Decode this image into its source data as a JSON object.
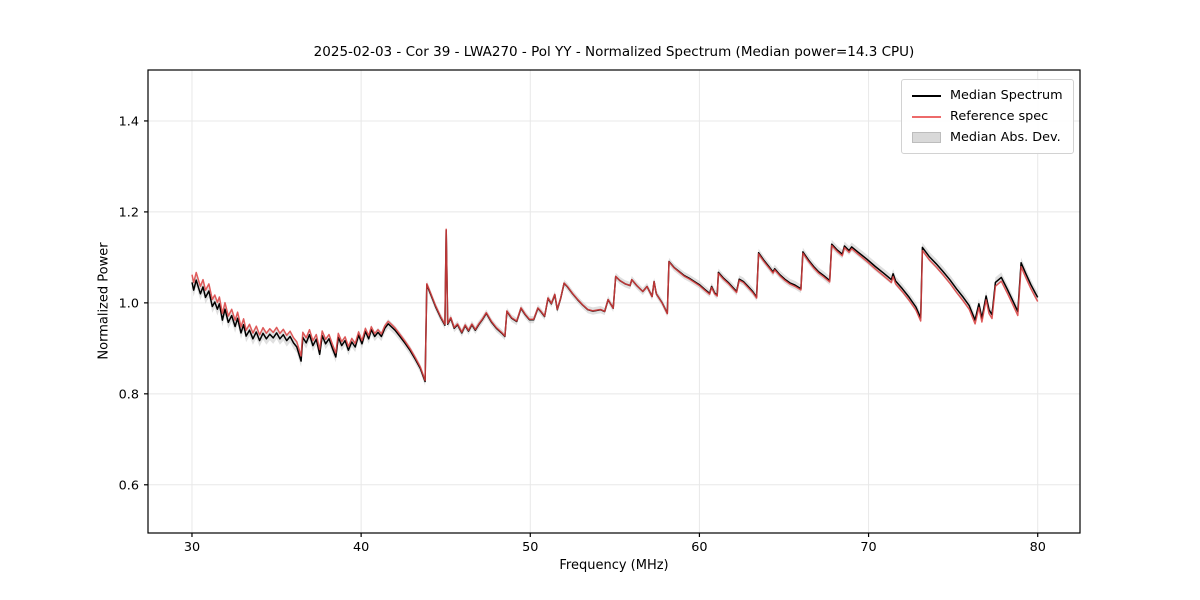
{
  "figure": {
    "title": "2025-02-03 - Cor 39 - LWA270 - Pol YY - Normalized Spectrum (Median power=14.3 CPU)",
    "xlabel": "Frequency (MHz)",
    "ylabel": "Normalized Power",
    "background": "#ffffff"
  },
  "legend": {
    "items": [
      {
        "label": "Median Spectrum",
        "type": "line",
        "color": "#000000"
      },
      {
        "label": "Reference spec",
        "type": "line",
        "color": "#ed6a6a"
      },
      {
        "label": "Median Abs. Dev.",
        "type": "patch",
        "color": "#d9d9d9",
        "edge": "#bdbdbd"
      }
    ]
  },
  "chart_data": {
    "type": "line",
    "title": "2025-02-03 - Cor 39 - LWA270 - Pol YY - Normalized Spectrum (Median power=14.3 CPU)",
    "xlabel": "Frequency (MHz)",
    "ylabel": "Normalized Power",
    "xlim": [
      27.4,
      82.5
    ],
    "ylim": [
      0.494,
      1.512
    ],
    "xticks": [
      30,
      40,
      50,
      60,
      70,
      80
    ],
    "xtick_labels": [
      "30",
      "40",
      "50",
      "60",
      "70",
      "80"
    ],
    "yticks": [
      0.6,
      0.8,
      1.0,
      1.2,
      1.4
    ],
    "ytick_labels": [
      "0.6",
      "0.8",
      "1.0",
      "1.2",
      "1.4"
    ],
    "grid": true,
    "grid_color": "#e8e8e8",
    "spine_color": "#000000",
    "legend_position": "upper right",
    "series": [
      {
        "name": "Median Spectrum",
        "role": "median",
        "color": "#000000",
        "width": 1.5,
        "opacity": 1.0
      },
      {
        "name": "Reference spec",
        "role": "reference",
        "color": "#dc4040",
        "width": 1.5,
        "opacity": 0.85
      },
      {
        "name": "Median Abs. Dev.",
        "role": "band",
        "color": "#bbbbbb",
        "opacity": 0.45
      }
    ],
    "median_points": [
      [
        30.0,
        1.045
      ],
      [
        30.1,
        1.028
      ],
      [
        30.25,
        1.05
      ],
      [
        30.4,
        1.032
      ],
      [
        30.5,
        1.02
      ],
      [
        30.65,
        1.035
      ],
      [
        30.8,
        1.012
      ],
      [
        31.0,
        1.026
      ],
      [
        31.2,
        0.992
      ],
      [
        31.35,
        1.002
      ],
      [
        31.5,
        0.986
      ],
      [
        31.62,
        0.998
      ],
      [
        31.8,
        0.962
      ],
      [
        31.95,
        0.986
      ],
      [
        32.15,
        0.957
      ],
      [
        32.35,
        0.972
      ],
      [
        32.55,
        0.948
      ],
      [
        32.7,
        0.966
      ],
      [
        32.9,
        0.934
      ],
      [
        33.05,
        0.952
      ],
      [
        33.2,
        0.927
      ],
      [
        33.4,
        0.94
      ],
      [
        33.6,
        0.921
      ],
      [
        33.8,
        0.936
      ],
      [
        34.0,
        0.917
      ],
      [
        34.2,
        0.933
      ],
      [
        34.4,
        0.921
      ],
      [
        34.6,
        0.931
      ],
      [
        34.8,
        0.923
      ],
      [
        35.0,
        0.934
      ],
      [
        35.2,
        0.921
      ],
      [
        35.4,
        0.93
      ],
      [
        35.6,
        0.917
      ],
      [
        35.8,
        0.926
      ],
      [
        36.0,
        0.912
      ],
      [
        36.2,
        0.903
      ],
      [
        36.45,
        0.872
      ],
      [
        36.55,
        0.924
      ],
      [
        36.75,
        0.912
      ],
      [
        36.95,
        0.93
      ],
      [
        37.15,
        0.906
      ],
      [
        37.35,
        0.92
      ],
      [
        37.55,
        0.887
      ],
      [
        37.7,
        0.928
      ],
      [
        37.9,
        0.91
      ],
      [
        38.1,
        0.921
      ],
      [
        38.3,
        0.9
      ],
      [
        38.5,
        0.881
      ],
      [
        38.65,
        0.924
      ],
      [
        38.85,
        0.906
      ],
      [
        39.05,
        0.917
      ],
      [
        39.25,
        0.896
      ],
      [
        39.45,
        0.914
      ],
      [
        39.65,
        0.903
      ],
      [
        39.85,
        0.929
      ],
      [
        40.05,
        0.91
      ],
      [
        40.25,
        0.937
      ],
      [
        40.45,
        0.921
      ],
      [
        40.6,
        0.941
      ],
      [
        40.8,
        0.926
      ],
      [
        41.0,
        0.935
      ],
      [
        41.2,
        0.926
      ],
      [
        41.4,
        0.944
      ],
      [
        41.6,
        0.954
      ],
      [
        41.8,
        0.947
      ],
      [
        42.0,
        0.94
      ],
      [
        42.3,
        0.926
      ],
      [
        42.6,
        0.911
      ],
      [
        42.9,
        0.895
      ],
      [
        43.2,
        0.876
      ],
      [
        43.5,
        0.856
      ],
      [
        43.78,
        0.827
      ],
      [
        43.88,
        1.04
      ],
      [
        44.1,
        1.02
      ],
      [
        44.4,
        0.992
      ],
      [
        44.7,
        0.968
      ],
      [
        44.95,
        0.951
      ],
      [
        45.03,
        1.16
      ],
      [
        45.12,
        0.953
      ],
      [
        45.3,
        0.966
      ],
      [
        45.5,
        0.944
      ],
      [
        45.7,
        0.952
      ],
      [
        45.95,
        0.934
      ],
      [
        46.15,
        0.95
      ],
      [
        46.35,
        0.938
      ],
      [
        46.55,
        0.952
      ],
      [
        46.75,
        0.94
      ],
      [
        46.95,
        0.952
      ],
      [
        47.15,
        0.962
      ],
      [
        47.4,
        0.977
      ],
      [
        47.7,
        0.958
      ],
      [
        48.0,
        0.944
      ],
      [
        48.3,
        0.934
      ],
      [
        48.5,
        0.926
      ],
      [
        48.62,
        0.981
      ],
      [
        48.9,
        0.966
      ],
      [
        49.2,
        0.959
      ],
      [
        49.45,
        0.988
      ],
      [
        49.7,
        0.974
      ],
      [
        49.95,
        0.963
      ],
      [
        50.2,
        0.963
      ],
      [
        50.45,
        0.988
      ],
      [
        50.6,
        0.982
      ],
      [
        50.85,
        0.97
      ],
      [
        51.05,
        1.01
      ],
      [
        51.25,
        0.998
      ],
      [
        51.45,
        1.018
      ],
      [
        51.6,
        0.985
      ],
      [
        51.8,
        1.01
      ],
      [
        52.0,
        1.043
      ],
      [
        52.2,
        1.035
      ],
      [
        52.5,
        1.02
      ],
      [
        52.8,
        1.007
      ],
      [
        53.1,
        0.995
      ],
      [
        53.4,
        0.985
      ],
      [
        53.7,
        0.982
      ],
      [
        54.15,
        0.985
      ],
      [
        54.4,
        0.981
      ],
      [
        54.6,
        1.007
      ],
      [
        54.9,
        0.988
      ],
      [
        55.05,
        1.058
      ],
      [
        55.3,
        1.049
      ],
      [
        55.6,
        1.042
      ],
      [
        55.9,
        1.038
      ],
      [
        56.0,
        1.051
      ],
      [
        56.3,
        1.038
      ],
      [
        56.65,
        1.025
      ],
      [
        56.9,
        1.036
      ],
      [
        57.2,
        1.014
      ],
      [
        57.32,
        1.047
      ],
      [
        57.45,
        1.02
      ],
      [
        57.8,
        1.0
      ],
      [
        58.1,
        0.977
      ],
      [
        58.2,
        1.091
      ],
      [
        58.5,
        1.078
      ],
      [
        58.8,
        1.069
      ],
      [
        59.1,
        1.06
      ],
      [
        59.4,
        1.054
      ],
      [
        59.7,
        1.047
      ],
      [
        60.0,
        1.04
      ],
      [
        60.3,
        1.03
      ],
      [
        60.6,
        1.021
      ],
      [
        60.72,
        1.036
      ],
      [
        60.9,
        1.022
      ],
      [
        61.05,
        1.017
      ],
      [
        61.12,
        1.067
      ],
      [
        61.4,
        1.055
      ],
      [
        61.7,
        1.045
      ],
      [
        62.0,
        1.033
      ],
      [
        62.2,
        1.025
      ],
      [
        62.35,
        1.052
      ],
      [
        62.6,
        1.047
      ],
      [
        62.9,
        1.035
      ],
      [
        63.15,
        1.025
      ],
      [
        63.38,
        1.013
      ],
      [
        63.5,
        1.11
      ],
      [
        63.8,
        1.094
      ],
      [
        64.1,
        1.08
      ],
      [
        64.35,
        1.068
      ],
      [
        64.45,
        1.075
      ],
      [
        64.75,
        1.062
      ],
      [
        65.05,
        1.052
      ],
      [
        65.35,
        1.044
      ],
      [
        65.65,
        1.039
      ],
      [
        66.0,
        1.031
      ],
      [
        66.12,
        1.112
      ],
      [
        66.45,
        1.094
      ],
      [
        66.75,
        1.08
      ],
      [
        67.05,
        1.068
      ],
      [
        67.35,
        1.06
      ],
      [
        67.7,
        1.049
      ],
      [
        67.82,
        1.129
      ],
      [
        68.15,
        1.116
      ],
      [
        68.45,
        1.107
      ],
      [
        68.58,
        1.125
      ],
      [
        68.85,
        1.115
      ],
      [
        69.0,
        1.123
      ],
      [
        69.4,
        1.111
      ],
      [
        69.9,
        1.096
      ],
      [
        70.4,
        1.08
      ],
      [
        70.9,
        1.065
      ],
      [
        71.35,
        1.051
      ],
      [
        71.45,
        1.064
      ],
      [
        71.6,
        1.048
      ],
      [
        72.0,
        1.031
      ],
      [
        72.4,
        1.012
      ],
      [
        72.8,
        0.991
      ],
      [
        73.08,
        0.967
      ],
      [
        73.18,
        1.122
      ],
      [
        73.6,
        1.101
      ],
      [
        74.0,
        1.086
      ],
      [
        74.4,
        1.069
      ],
      [
        74.8,
        1.051
      ],
      [
        75.2,
        1.031
      ],
      [
        75.6,
        1.012
      ],
      [
        75.95,
        0.994
      ],
      [
        76.3,
        0.962
      ],
      [
        76.52,
        0.998
      ],
      [
        76.7,
        0.966
      ],
      [
        76.95,
        1.015
      ],
      [
        77.12,
        0.985
      ],
      [
        77.3,
        0.974
      ],
      [
        77.5,
        1.045
      ],
      [
        77.85,
        1.056
      ],
      [
        78.2,
        1.03
      ],
      [
        78.5,
        1.007
      ],
      [
        78.82,
        0.981
      ],
      [
        79.02,
        1.088
      ],
      [
        79.3,
        1.064
      ],
      [
        79.6,
        1.04
      ],
      [
        79.85,
        1.022
      ],
      [
        80.0,
        1.012
      ]
    ],
    "reference_offset": [
      [
        30,
        0.017
      ],
      [
        33,
        0.013
      ],
      [
        37,
        0.011
      ],
      [
        40,
        0.007
      ],
      [
        43,
        0.004
      ],
      [
        44,
        0.002
      ],
      [
        50,
        0.001
      ],
      [
        57,
        0.0
      ],
      [
        60,
        -0.002
      ],
      [
        68,
        -0.003
      ],
      [
        71,
        -0.006
      ],
      [
        76,
        -0.008
      ],
      [
        80,
        -0.009
      ]
    ],
    "mad_halfwidth": [
      [
        30,
        0.014
      ],
      [
        36,
        0.013
      ],
      [
        40,
        0.011
      ],
      [
        44,
        0.009
      ],
      [
        50,
        0.008
      ],
      [
        58,
        0.008
      ],
      [
        64,
        0.009
      ],
      [
        70,
        0.01
      ],
      [
        76,
        0.011
      ],
      [
        80,
        0.011
      ]
    ]
  }
}
